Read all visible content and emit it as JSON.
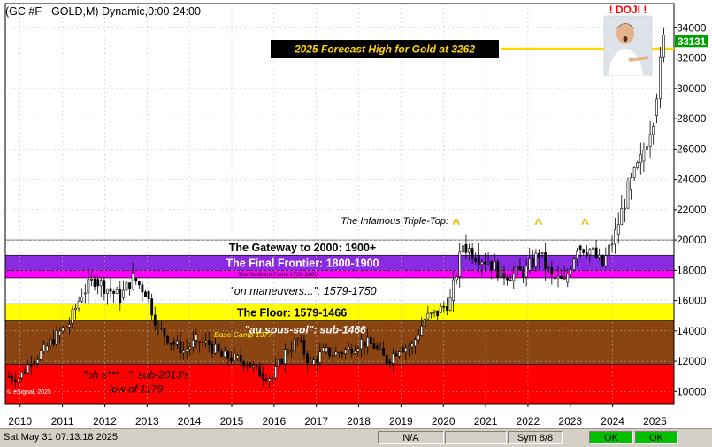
{
  "chart_data": {
    "type": "candlestick",
    "title": "(GC #F - GOLD,M) Dynamic,0:00-24:00",
    "ylim": [
      9200,
      35600
    ],
    "y_ticks": [
      10000,
      12000,
      14000,
      16000,
      18000,
      20000,
      22000,
      24000,
      26000,
      28000,
      30000,
      32000,
      34000
    ],
    "x_ticks": [
      "2010",
      "2011",
      "2012",
      "2013",
      "2014",
      "2015",
      "2016",
      "2017",
      "2018",
      "2019",
      "2020",
      "2021",
      "2022",
      "2023",
      "2024",
      "2025"
    ],
    "x_range": [
      2009.65,
      2025.45
    ],
    "last_price": "33131",
    "last_price_value": 33131,
    "forecast": {
      "label": "2025 Forecast High for Gold at 3262",
      "value": 32620,
      "line_color": "#ffd700"
    },
    "zones": [
      {
        "label": "\"oh s***...\":  sub-2013's\nlow of 1179",
        "from": 9200,
        "to": 11800,
        "color": "#ff0000"
      },
      {
        "label": "\"au sous-sol\":  sub-1466",
        "from": 11800,
        "to": 14660,
        "color": "#8b4513"
      },
      {
        "label": "The Floor:  1579-1466",
        "from": 14660,
        "to": 15790,
        "color": "#ffff00"
      },
      {
        "label": "\"on maneuvers...\":  1579-1750",
        "from": 15790,
        "to": 17500,
        "color": "#ffffff"
      },
      {
        "label": "The Northern Front:  1750-1800",
        "from": 17500,
        "to": 18000,
        "color": "#ff00ff"
      },
      {
        "label": "The Final Frontier:  1800-1900",
        "from": 18000,
        "to": 19000,
        "color": "#8a2be2"
      },
      {
        "label": "The Gateway to 2000:  1900+",
        "from": 19000,
        "to": 20000,
        "color": "#ffffff"
      }
    ],
    "annotations": {
      "triple_top": "The Infamous Triple-Top:",
      "triple_top_mark": "^",
      "triple_top_points": [
        {
          "x": 2020.3,
          "y": 21300
        },
        {
          "x": 2022.25,
          "y": 21300
        },
        {
          "x": 2023.35,
          "y": 21300
        }
      ],
      "base_camp": "Base Camp 1377",
      "base_camp_value": 13770,
      "doji": "! DOJI !",
      "watermark": "© eSignal, 2025"
    },
    "series": [
      {
        "x": [
          2009.7,
          2010.0,
          2010.3,
          2010.6,
          2010.9,
          2011.2,
          2011.5,
          2011.8,
          2012.1,
          2012.4,
          2012.7,
          2013.0,
          2013.3,
          2013.6,
          2013.9,
          2014.2,
          2014.5,
          2014.8,
          2015.1,
          2015.4,
          2015.7,
          2016.0,
          2016.3,
          2016.6,
          2016.9,
          2017.2,
          2017.5,
          2017.8,
          2018.1,
          2018.4,
          2018.7,
          2019.0,
          2019.3,
          2019.6,
          2019.9,
          2020.2,
          2020.5,
          2020.8,
          2021.1,
          2021.4,
          2021.7,
          2022.0,
          2022.3,
          2022.6,
          2022.9,
          2023.2,
          2023.5,
          2023.8,
          2024.1,
          2024.4,
          2024.7,
          2025.0,
          2025.25
        ],
        "values": [
          11000,
          10900,
          12000,
          12700,
          13700,
          14500,
          16500,
          17400,
          16800,
          16200,
          17500,
          16600,
          14200,
          13300,
          12700,
          13300,
          13100,
          12300,
          12200,
          11900,
          11200,
          10900,
          12600,
          13400,
          11800,
          12600,
          12500,
          12800,
          13300,
          13000,
          12000,
          12900,
          13000,
          14800,
          15200,
          16000,
          19700,
          19000,
          18600,
          17800,
          17700,
          18000,
          19100,
          17500,
          17200,
          19600,
          19400,
          18300,
          20400,
          23300,
          25200,
          28200,
          33131
        ]
      }
    ]
  },
  "status": {
    "datetime": "Sat May 31 07:13:18 2025",
    "na": "N/A",
    "sym": "Sym 8/8",
    "ok1": "OK",
    "ok2": "OK"
  }
}
